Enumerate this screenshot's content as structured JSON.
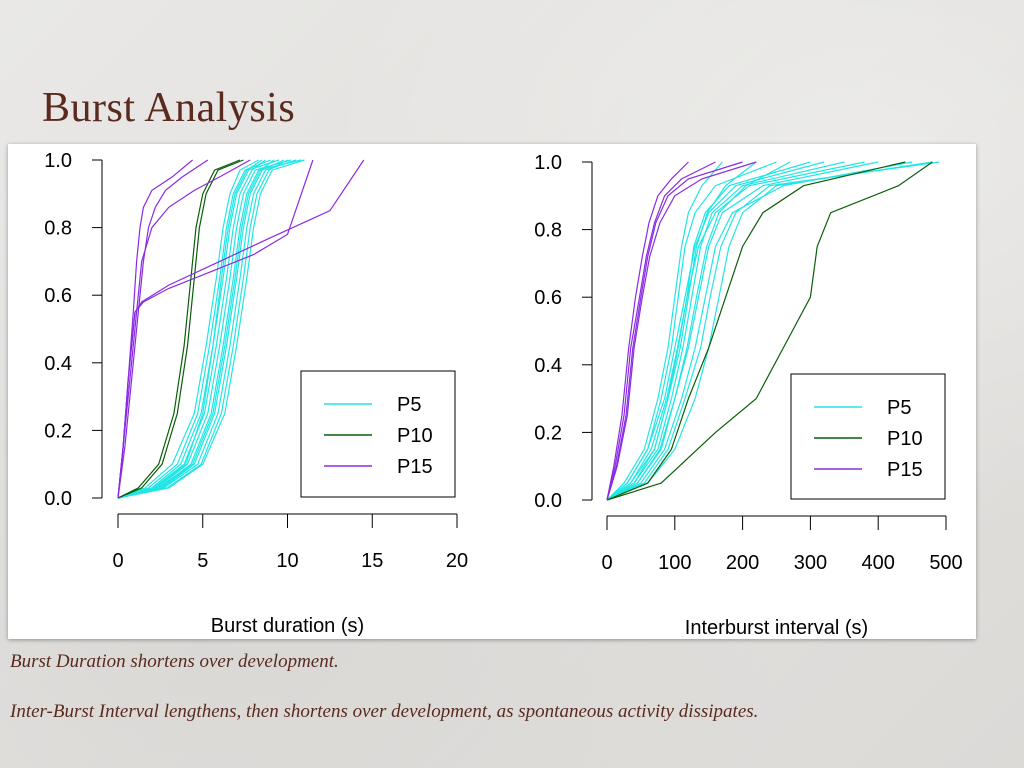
{
  "slide": {
    "title": "Burst Analysis",
    "caption_1": "Burst Duration shortens over development.",
    "caption_2": "Inter-Burst Interval lengthens, then shortens over development, as spontaneous activity dissipates."
  },
  "colors": {
    "P5": "#22e5e5",
    "P10": "#0a5e0a",
    "P15": "#8a2be2"
  },
  "chart_data": [
    {
      "type": "line",
      "title": "",
      "xlabel": "Burst duration (s)",
      "ylabel": "",
      "xlim": [
        0,
        20
      ],
      "ylim": [
        0,
        1
      ],
      "xticks": [
        "0",
        "5",
        "10",
        "15",
        "20"
      ],
      "yticks": [
        "0.0",
        "0.2",
        "0.4",
        "0.6",
        "0.8",
        "1.0"
      ],
      "legend": [
        "P5",
        "P10",
        "P15"
      ],
      "legend_position": "right-center",
      "series": [
        {
          "group": "P5",
          "x": [
            0,
            1.6,
            3.2,
            4.5,
            5.2,
            5.8,
            6.2,
            6.6,
            7.2,
            8.3
          ],
          "y": [
            0,
            0.03,
            0.1,
            0.25,
            0.45,
            0.65,
            0.8,
            0.9,
            0.97,
            1
          ]
        },
        {
          "group": "P5",
          "x": [
            0,
            1.8,
            3.5,
            4.7,
            5.4,
            6.0,
            6.4,
            6.8,
            7.5,
            9.0
          ],
          "y": [
            0,
            0.03,
            0.1,
            0.25,
            0.45,
            0.65,
            0.8,
            0.9,
            0.97,
            1
          ]
        },
        {
          "group": "P5",
          "x": [
            0,
            2.0,
            3.7,
            4.9,
            5.6,
            6.2,
            6.6,
            7.0,
            7.7,
            9.5
          ],
          "y": [
            0,
            0.03,
            0.1,
            0.25,
            0.45,
            0.65,
            0.8,
            0.9,
            0.97,
            1
          ]
        },
        {
          "group": "P5",
          "x": [
            0,
            2.1,
            3.9,
            5.1,
            5.8,
            6.4,
            6.8,
            7.2,
            7.9,
            8.7
          ],
          "y": [
            0,
            0.03,
            0.1,
            0.25,
            0.45,
            0.65,
            0.8,
            0.9,
            0.97,
            1
          ]
        },
        {
          "group": "P5",
          "x": [
            0,
            2.3,
            4.1,
            5.3,
            6.0,
            6.6,
            7.0,
            7.4,
            8.1,
            10.2
          ],
          "y": [
            0,
            0.03,
            0.1,
            0.25,
            0.45,
            0.65,
            0.8,
            0.9,
            0.97,
            1
          ]
        },
        {
          "group": "P5",
          "x": [
            0,
            2.4,
            4.3,
            5.5,
            6.2,
            6.8,
            7.2,
            7.6,
            8.3,
            10.8
          ],
          "y": [
            0,
            0.03,
            0.1,
            0.25,
            0.45,
            0.65,
            0.8,
            0.9,
            0.97,
            1
          ]
        },
        {
          "group": "P5",
          "x": [
            0,
            2.6,
            4.5,
            5.7,
            6.4,
            7.0,
            7.4,
            7.8,
            8.5,
            9.8
          ],
          "y": [
            0,
            0.03,
            0.1,
            0.25,
            0.45,
            0.65,
            0.8,
            0.9,
            0.97,
            1
          ]
        },
        {
          "group": "P5",
          "x": [
            0,
            2.7,
            4.7,
            5.9,
            6.6,
            7.2,
            7.6,
            8.0,
            8.7,
            10.5
          ],
          "y": [
            0,
            0.03,
            0.1,
            0.25,
            0.45,
            0.65,
            0.8,
            0.9,
            0.97,
            1
          ]
        },
        {
          "group": "P5",
          "x": [
            0,
            2.9,
            4.9,
            6.1,
            6.8,
            7.4,
            7.8,
            8.2,
            8.9,
            10.0
          ],
          "y": [
            0,
            0.03,
            0.1,
            0.25,
            0.45,
            0.65,
            0.8,
            0.9,
            0.97,
            1
          ]
        },
        {
          "group": "P5",
          "x": [
            0,
            3.0,
            5.0,
            6.3,
            7.0,
            7.6,
            8.0,
            8.4,
            9.1,
            11.0
          ],
          "y": [
            0,
            0.03,
            0.1,
            0.25,
            0.45,
            0.65,
            0.8,
            0.9,
            0.97,
            1
          ]
        },
        {
          "group": "P5",
          "x": [
            0,
            2.2,
            4.0,
            5.0,
            5.6,
            6.1,
            6.5,
            6.9,
            7.6,
            8.5
          ],
          "y": [
            0,
            0.03,
            0.1,
            0.25,
            0.45,
            0.65,
            0.8,
            0.9,
            0.97,
            1
          ]
        },
        {
          "group": "P5",
          "x": [
            0,
            2.5,
            4.4,
            5.6,
            6.3,
            6.9,
            7.3,
            7.7,
            8.4,
            9.2
          ],
          "y": [
            0,
            0.03,
            0.1,
            0.25,
            0.45,
            0.65,
            0.8,
            0.9,
            0.97,
            1
          ]
        },
        {
          "group": "P10",
          "x": [
            0,
            1.2,
            2.4,
            3.3,
            3.9,
            4.3,
            4.6,
            5.0,
            5.7,
            7.2
          ],
          "y": [
            0,
            0.03,
            0.1,
            0.25,
            0.45,
            0.65,
            0.8,
            0.9,
            0.97,
            1
          ]
        },
        {
          "group": "P10",
          "x": [
            0,
            1.4,
            2.6,
            3.5,
            4.1,
            4.5,
            4.8,
            5.2,
            5.9,
            7.4
          ],
          "y": [
            0,
            0.03,
            0.1,
            0.25,
            0.45,
            0.65,
            0.8,
            0.9,
            0.97,
            1
          ]
        },
        {
          "group": "P15",
          "x": [
            0,
            0.3,
            0.6,
            0.9,
            1.1,
            1.3,
            1.5,
            2.0,
            3.2,
            4.4
          ],
          "y": [
            0,
            0.15,
            0.35,
            0.55,
            0.7,
            0.8,
            0.86,
            0.91,
            0.95,
            1
          ]
        },
        {
          "group": "P15",
          "x": [
            0,
            0.4,
            0.8,
            1.2,
            1.5,
            1.8,
            2.2,
            2.8,
            3.8,
            5.3
          ],
          "y": [
            0,
            0.15,
            0.35,
            0.55,
            0.7,
            0.8,
            0.86,
            0.91,
            0.95,
            1
          ]
        },
        {
          "group": "P15",
          "x": [
            0,
            0.3,
            0.7,
            1.1,
            1.4,
            2.0,
            3.0,
            4.5,
            6.0,
            7.8
          ],
          "y": [
            0,
            0.15,
            0.35,
            0.55,
            0.7,
            0.8,
            0.86,
            0.91,
            0.95,
            1
          ]
        },
        {
          "group": "P15",
          "x": [
            0,
            0.3,
            0.6,
            1.0,
            1.5,
            3.0,
            5.0,
            8.0,
            10.0,
            11.5
          ],
          "y": [
            0,
            0.15,
            0.35,
            0.55,
            0.58,
            0.62,
            0.66,
            0.72,
            0.78,
            1
          ]
        },
        {
          "group": "P15",
          "x": [
            0,
            0.3,
            0.6,
            1.0,
            1.4,
            3.0,
            6.0,
            9.0,
            12.5,
            14.5
          ],
          "y": [
            0,
            0.15,
            0.35,
            0.55,
            0.58,
            0.63,
            0.7,
            0.77,
            0.85,
            1
          ]
        }
      ]
    },
    {
      "type": "line",
      "title": "",
      "xlabel": "Interburst interval (s)",
      "ylabel": "",
      "xlim": [
        0,
        500
      ],
      "ylim": [
        0,
        1
      ],
      "xticks": [
        "0",
        "100",
        "200",
        "300",
        "400",
        "500"
      ],
      "yticks": [
        "0.0",
        "0.2",
        "0.4",
        "0.6",
        "0.8",
        "1.0"
      ],
      "legend": [
        "P5",
        "P10",
        "P15"
      ],
      "legend_position": "bottom-right",
      "series": [
        {
          "group": "P5",
          "x": [
            0,
            30,
            60,
            80,
            95,
            105,
            115,
            130,
            160,
            250
          ],
          "y": [
            0,
            0.05,
            0.15,
            0.3,
            0.45,
            0.6,
            0.75,
            0.85,
            0.93,
            1
          ]
        },
        {
          "group": "P5",
          "x": [
            0,
            35,
            70,
            90,
            105,
            118,
            128,
            145,
            180,
            300
          ],
          "y": [
            0,
            0.05,
            0.15,
            0.3,
            0.45,
            0.6,
            0.75,
            0.85,
            0.93,
            1
          ]
        },
        {
          "group": "P5",
          "x": [
            0,
            40,
            75,
            95,
            112,
            125,
            138,
            155,
            200,
            350
          ],
          "y": [
            0,
            0.05,
            0.15,
            0.3,
            0.45,
            0.6,
            0.75,
            0.85,
            0.93,
            1
          ]
        },
        {
          "group": "P5",
          "x": [
            0,
            45,
            80,
            100,
            120,
            135,
            150,
            170,
            230,
            400
          ],
          "y": [
            0,
            0.05,
            0.15,
            0.3,
            0.45,
            0.6,
            0.75,
            0.85,
            0.93,
            1
          ]
        },
        {
          "group": "P5",
          "x": [
            0,
            50,
            85,
            110,
            130,
            145,
            160,
            185,
            260,
            450
          ],
          "y": [
            0,
            0.05,
            0.15,
            0.3,
            0.45,
            0.6,
            0.75,
            0.85,
            0.93,
            1
          ]
        },
        {
          "group": "P5",
          "x": [
            0,
            25,
            55,
            75,
            90,
            100,
            110,
            120,
            140,
            170
          ],
          "y": [
            0,
            0.05,
            0.15,
            0.3,
            0.45,
            0.6,
            0.75,
            0.85,
            0.93,
            1
          ]
        },
        {
          "group": "P5",
          "x": [
            0,
            30,
            60,
            85,
            100,
            115,
            130,
            150,
            190,
            320
          ],
          "y": [
            0,
            0.05,
            0.15,
            0.3,
            0.45,
            0.6,
            0.75,
            0.85,
            0.93,
            1
          ]
        },
        {
          "group": "P5",
          "x": [
            0,
            60,
            100,
            130,
            150,
            165,
            180,
            200,
            250,
            480
          ],
          "y": [
            0,
            0.05,
            0.15,
            0.3,
            0.45,
            0.6,
            0.75,
            0.85,
            0.93,
            1
          ]
        },
        {
          "group": "P5",
          "x": [
            0,
            40,
            70,
            90,
            108,
            120,
            132,
            148,
            175,
            220
          ],
          "y": [
            0,
            0.05,
            0.15,
            0.3,
            0.45,
            0.6,
            0.75,
            0.85,
            0.93,
            1
          ]
        },
        {
          "group": "P5",
          "x": [
            0,
            55,
            90,
            115,
            138,
            152,
            168,
            190,
            240,
            490
          ],
          "y": [
            0,
            0.05,
            0.15,
            0.3,
            0.45,
            0.6,
            0.75,
            0.85,
            0.93,
            1
          ]
        },
        {
          "group": "P5",
          "x": [
            0,
            35,
            65,
            88,
            104,
            118,
            135,
            160,
            210,
            380
          ],
          "y": [
            0,
            0.05,
            0.15,
            0.3,
            0.45,
            0.6,
            0.75,
            0.85,
            0.93,
            1
          ]
        },
        {
          "group": "P5",
          "x": [
            0,
            45,
            78,
            100,
            118,
            132,
            147,
            165,
            205,
            270
          ],
          "y": [
            0,
            0.05,
            0.15,
            0.3,
            0.45,
            0.6,
            0.75,
            0.85,
            0.93,
            1
          ]
        },
        {
          "group": "P10",
          "x": [
            0,
            60,
            95,
            120,
            150,
            175,
            200,
            230,
            290,
            440
          ],
          "y": [
            0,
            0.05,
            0.15,
            0.3,
            0.45,
            0.6,
            0.75,
            0.85,
            0.93,
            1
          ]
        },
        {
          "group": "P10",
          "x": [
            0,
            80,
            160,
            220,
            260,
            300,
            310,
            330,
            430,
            480
          ],
          "y": [
            0,
            0.05,
            0.2,
            0.3,
            0.45,
            0.6,
            0.75,
            0.85,
            0.93,
            1
          ]
        },
        {
          "group": "P15",
          "x": [
            0,
            10,
            22,
            32,
            42,
            52,
            62,
            75,
            95,
            120
          ],
          "y": [
            0,
            0.1,
            0.25,
            0.45,
            0.6,
            0.72,
            0.82,
            0.9,
            0.95,
            1
          ]
        },
        {
          "group": "P15",
          "x": [
            0,
            12,
            25,
            35,
            48,
            58,
            70,
            85,
            110,
            160
          ],
          "y": [
            0,
            0.1,
            0.25,
            0.45,
            0.6,
            0.72,
            0.82,
            0.9,
            0.95,
            1
          ]
        },
        {
          "group": "P15",
          "x": [
            0,
            15,
            30,
            40,
            52,
            63,
            78,
            100,
            140,
            220
          ],
          "y": [
            0,
            0.1,
            0.25,
            0.45,
            0.6,
            0.72,
            0.82,
            0.9,
            0.95,
            1
          ]
        },
        {
          "group": "P15",
          "x": [
            0,
            14,
            28,
            38,
            50,
            60,
            72,
            90,
            120,
            200
          ],
          "y": [
            0,
            0.1,
            0.25,
            0.45,
            0.6,
            0.72,
            0.82,
            0.9,
            0.95,
            1
          ]
        }
      ]
    }
  ]
}
